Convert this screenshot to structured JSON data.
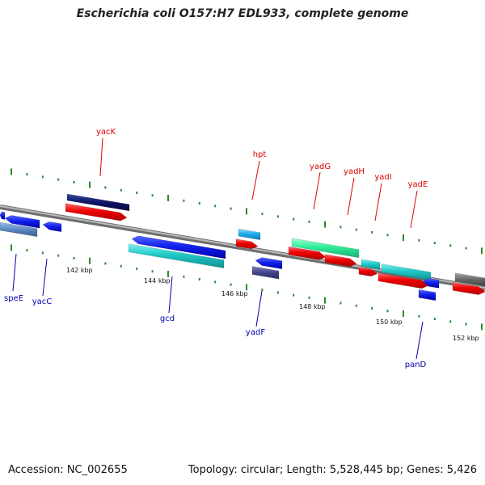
{
  "title": "Escherichia coli O157:H7 EDL933, complete genome",
  "footer": {
    "accession": "Accession: NC_002655",
    "summary": "Topology: circular; Length: 5,528,445 bp; Genes: 5,426"
  },
  "colors": {
    "backbone": "#888888",
    "tick": "#2a8a2a",
    "label_forward": "#dd0000",
    "label_reverse": "#0000aa"
  },
  "ruler": {
    "ticks": [
      "142 kbp",
      "144 kbp",
      "146 kbp",
      "148 kbp",
      "150 kbp",
      "152 kbp"
    ]
  },
  "genes": {
    "forward_labels": [
      "yacK",
      "hpt",
      "yadG",
      "yadH",
      "yadI",
      "yadE"
    ],
    "reverse_labels": [
      "speE",
      "yacC",
      "gcd",
      "yadF",
      "panD"
    ]
  }
}
